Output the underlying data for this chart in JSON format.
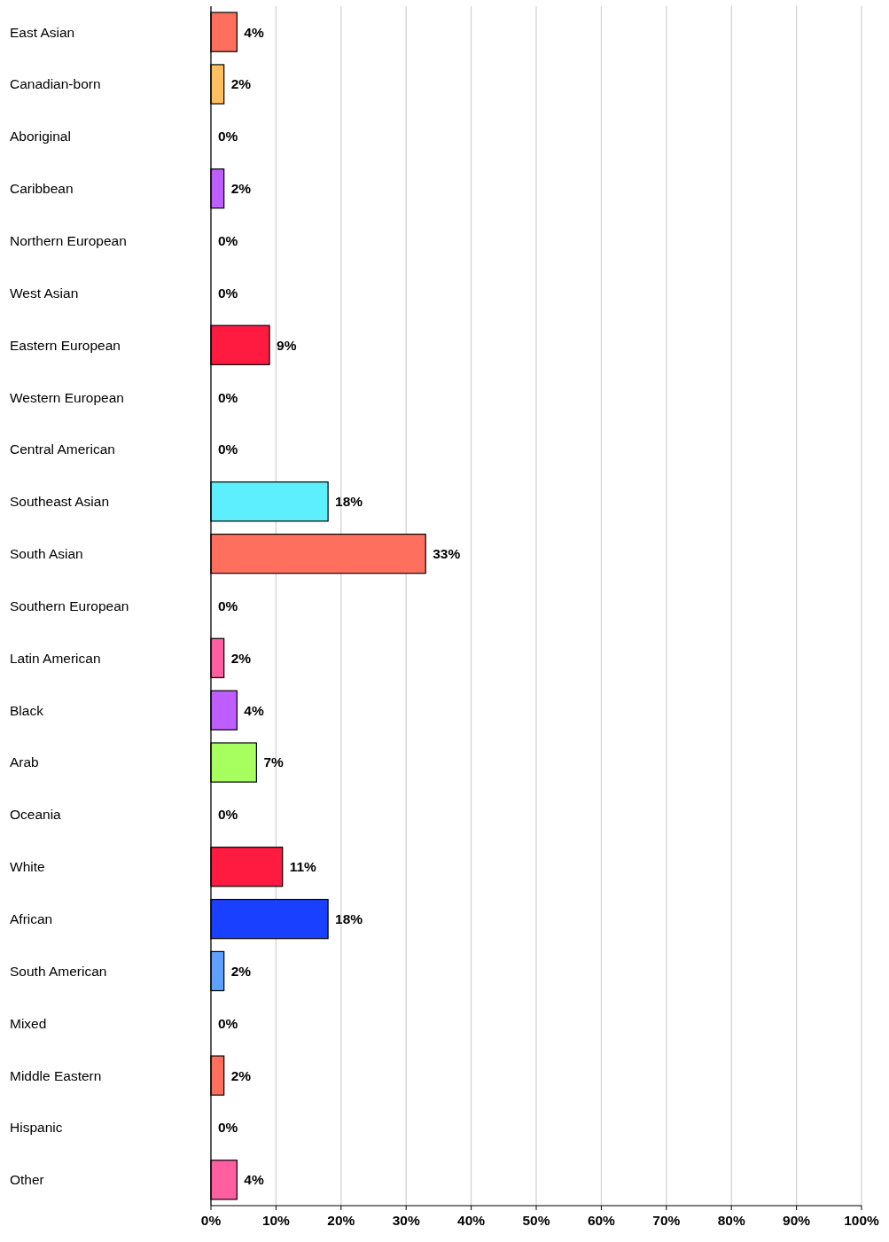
{
  "chart_data": {
    "type": "bar",
    "orientation": "horizontal",
    "categories": [
      "East Asian",
      "Canadian-born",
      "Aboriginal",
      "Caribbean",
      "Northern European",
      "West Asian",
      "Eastern European",
      "Western European",
      "Central American",
      "Southeast Asian",
      "South Asian",
      "Southern European",
      "Latin American",
      "Black",
      "Arab",
      "Oceania",
      "White",
      "African",
      "South American",
      "Mixed",
      "Middle Eastern",
      "Hispanic",
      "Other"
    ],
    "values": [
      4,
      2,
      0,
      2,
      0,
      0,
      9,
      0,
      0,
      18,
      33,
      0,
      2,
      4,
      7,
      0,
      11,
      18,
      2,
      0,
      2,
      0,
      4
    ],
    "colors": [
      "#ff6f5e",
      "#ffbf5e",
      "#ff6f5e",
      "#bf5eff",
      "#ff6f5e",
      "#ff6f5e",
      "#ff1a40",
      "#ff6f5e",
      "#ff6f5e",
      "#5eefff",
      "#ff6f5e",
      "#ff6f5e",
      "#ff5e9f",
      "#bf5eff",
      "#a6ff5e",
      "#ff6f5e",
      "#ff1a40",
      "#1a40ff",
      "#5e9fff",
      "#ff6f5e",
      "#ff6f5e",
      "#ff6f5e",
      "#ff5e9f"
    ],
    "value_labels": [
      "4%",
      "2%",
      "0%",
      "2%",
      "0%",
      "0%",
      "9%",
      "0%",
      "0%",
      "18%",
      "33%",
      "0%",
      "2%",
      "4%",
      "7%",
      "0%",
      "11%",
      "18%",
      "2%",
      "0%",
      "2%",
      "0%",
      "4%"
    ],
    "xlim": [
      0,
      100
    ],
    "xticks": [
      {
        "value": 0,
        "label": "0%"
      },
      {
        "value": 10,
        "label": "10%"
      },
      {
        "value": 20,
        "label": "20%"
      },
      {
        "value": 30,
        "label": "30%"
      },
      {
        "value": 40,
        "label": "40%"
      },
      {
        "value": 50,
        "label": "50%"
      },
      {
        "value": 60,
        "label": "60%"
      },
      {
        "value": 70,
        "label": "70%"
      },
      {
        "value": 80,
        "label": "80%"
      },
      {
        "value": 90,
        "label": "90%"
      },
      {
        "value": 100,
        "label": "100%"
      }
    ],
    "grid": "x"
  }
}
